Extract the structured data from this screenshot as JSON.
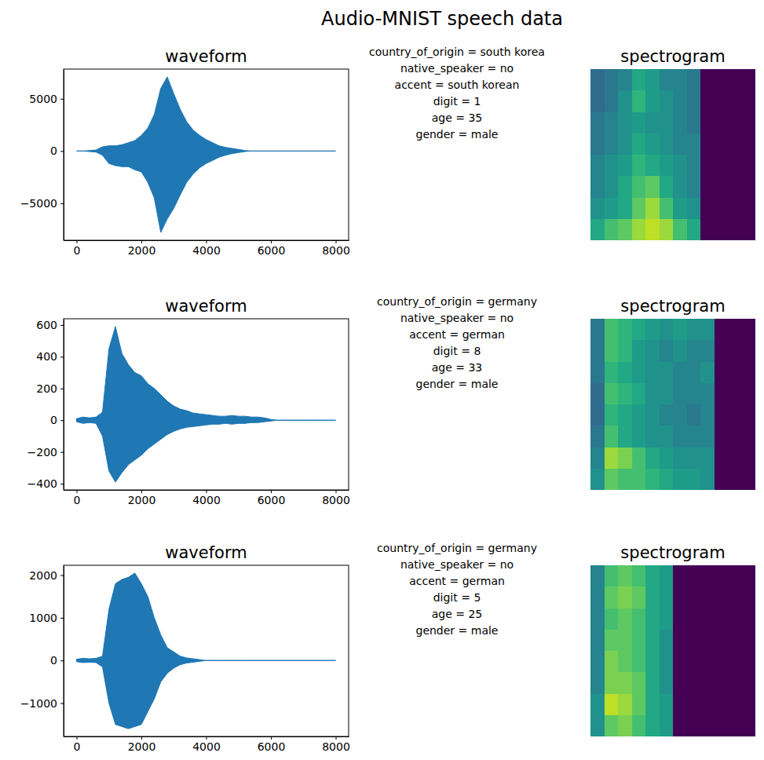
{
  "title": "Audio-MNIST speech data",
  "chart_data": [
    {
      "type": "area",
      "title": "waveform",
      "color": "#1f77b4",
      "x": [
        0,
        200,
        400,
        600,
        800,
        1000,
        1200,
        1400,
        1600,
        1800,
        2000,
        2200,
        2400,
        2600,
        2800,
        3000,
        3200,
        3400,
        3600,
        3800,
        4000,
        4200,
        4400,
        4600,
        4800,
        5000,
        5200,
        5400,
        5600,
        5800,
        6000,
        6200,
        6400,
        6600,
        6800,
        7000,
        7200,
        7400,
        7600,
        7800,
        8000
      ],
      "upper": [
        0,
        0,
        50,
        100,
        400,
        500,
        500,
        600,
        800,
        1000,
        1500,
        2200,
        3500,
        6000,
        7100,
        5500,
        4000,
        2800,
        2000,
        1500,
        1100,
        800,
        500,
        350,
        250,
        150,
        50,
        0,
        0,
        0,
        0,
        0,
        0,
        0,
        0,
        0,
        0,
        0,
        0,
        0,
        0
      ],
      "lower": [
        0,
        0,
        -50,
        -100,
        -400,
        -1200,
        -1400,
        -1500,
        -1500,
        -1800,
        -2000,
        -3000,
        -4500,
        -7800,
        -6500,
        -5500,
        -4200,
        -3000,
        -2200,
        -1600,
        -1200,
        -900,
        -600,
        -400,
        -250,
        -150,
        -50,
        0,
        0,
        0,
        0,
        0,
        0,
        0,
        0,
        0,
        0,
        0,
        0,
        0,
        0
      ],
      "xlim": [
        -400,
        8400
      ],
      "xticks": [
        0,
        2000,
        4000,
        6000,
        8000
      ],
      "ylim": [
        -8545,
        7845
      ],
      "yticks": [
        {
          "value": -5000,
          "label": "−5000"
        },
        0,
        5000
      ],
      "annotations": [
        "country_of_origin = south korea",
        "native_speaker = no",
        "accent = south korean",
        "digit = 1",
        "age = 35",
        "gender = male"
      ]
    },
    {
      "type": "heatmap",
      "title": "spectrogram",
      "tick_labels": false,
      "color_range": [
        0,
        1
      ],
      "cells": [
        [
          0.35,
          0.4,
          0.45,
          0.6,
          0.55,
          0.45,
          0.45,
          0.4,
          0,
          0,
          0,
          0
        ],
        [
          0.35,
          0.4,
          0.5,
          0.65,
          0.55,
          0.5,
          0.45,
          0.4,
          0,
          0,
          0,
          0
        ],
        [
          0.4,
          0.45,
          0.5,
          0.55,
          0.5,
          0.5,
          0.45,
          0.4,
          0,
          0,
          0,
          0
        ],
        [
          0.4,
          0.45,
          0.5,
          0.6,
          0.55,
          0.5,
          0.45,
          0.45,
          0,
          0,
          0,
          0
        ],
        [
          0.45,
          0.5,
          0.55,
          0.65,
          0.6,
          0.55,
          0.5,
          0.45,
          0,
          0,
          0,
          0
        ],
        [
          0.45,
          0.5,
          0.6,
          0.7,
          0.75,
          0.6,
          0.5,
          0.45,
          0,
          0,
          0,
          0
        ],
        [
          0.5,
          0.55,
          0.6,
          0.75,
          0.85,
          0.7,
          0.55,
          0.5,
          0,
          0,
          0,
          0
        ],
        [
          0.6,
          0.7,
          0.75,
          0.85,
          0.9,
          0.85,
          0.7,
          0.6,
          0,
          0,
          0,
          0
        ]
      ]
    },
    {
      "type": "area",
      "title": "waveform",
      "color": "#1f77b4",
      "x": [
        0,
        200,
        400,
        600,
        800,
        1000,
        1200,
        1400,
        1600,
        1800,
        2000,
        2200,
        2400,
        2600,
        2800,
        3000,
        3200,
        3400,
        3600,
        3800,
        4000,
        4200,
        4400,
        4600,
        4800,
        5000,
        5200,
        5400,
        5600,
        5800,
        6000,
        6200,
        6400,
        6600,
        6800,
        7000,
        7200,
        7400,
        7600,
        7800,
        8000
      ],
      "upper": [
        10,
        20,
        15,
        20,
        50,
        450,
        590,
        420,
        350,
        300,
        280,
        230,
        200,
        160,
        120,
        90,
        70,
        60,
        45,
        40,
        35,
        30,
        25,
        25,
        30,
        25,
        25,
        20,
        20,
        15,
        5,
        0,
        0,
        0,
        0,
        0,
        0,
        0,
        0,
        0,
        0
      ],
      "lower": [
        -10,
        -20,
        -15,
        -20,
        -100,
        -320,
        -390,
        -330,
        -280,
        -250,
        -220,
        -180,
        -150,
        -120,
        -90,
        -70,
        -55,
        -45,
        -40,
        -35,
        -30,
        -25,
        -25,
        -20,
        -25,
        -20,
        -20,
        -15,
        -15,
        -10,
        -5,
        0,
        0,
        0,
        0,
        0,
        0,
        0,
        0,
        0,
        0
      ],
      "xlim": [
        -400,
        8400
      ],
      "xticks": [
        0,
        2000,
        4000,
        6000,
        8000
      ],
      "ylim": [
        -439,
        639
      ],
      "yticks": [
        {
          "value": -400,
          "label": "−400"
        },
        {
          "value": -200,
          "label": "−200"
        },
        0,
        200,
        400,
        600
      ],
      "annotations": [
        "country_of_origin = germany",
        "native_speaker = no",
        "accent = german",
        "digit = 8",
        "age = 33",
        "gender = male"
      ]
    },
    {
      "type": "heatmap",
      "title": "spectrogram",
      "tick_labels": false,
      "color_range": [
        0,
        1
      ],
      "cells": [
        [
          0.4,
          0.7,
          0.65,
          0.6,
          0.55,
          0.5,
          0.55,
          0.5,
          0.5,
          0,
          0,
          0
        ],
        [
          0.4,
          0.7,
          0.65,
          0.55,
          0.5,
          0.45,
          0.5,
          0.45,
          0.45,
          0,
          0,
          0
        ],
        [
          0.4,
          0.65,
          0.6,
          0.55,
          0.5,
          0.5,
          0.45,
          0.45,
          0.5,
          0,
          0,
          0
        ],
        [
          0.35,
          0.7,
          0.65,
          0.6,
          0.5,
          0.5,
          0.45,
          0.45,
          0.45,
          0,
          0,
          0
        ],
        [
          0.35,
          0.65,
          0.6,
          0.55,
          0.5,
          0.45,
          0.45,
          0.4,
          0.45,
          0,
          0,
          0
        ],
        [
          0.4,
          0.7,
          0.6,
          0.55,
          0.5,
          0.5,
          0.45,
          0.45,
          0.45,
          0,
          0,
          0
        ],
        [
          0.45,
          0.85,
          0.8,
          0.7,
          0.6,
          0.55,
          0.5,
          0.5,
          0.5,
          0,
          0,
          0
        ],
        [
          0.5,
          0.75,
          0.7,
          0.7,
          0.65,
          0.6,
          0.55,
          0.55,
          0.5,
          0,
          0,
          0
        ]
      ]
    },
    {
      "type": "area",
      "title": "waveform",
      "color": "#1f77b4",
      "x": [
        0,
        200,
        400,
        600,
        800,
        1000,
        1200,
        1400,
        1600,
        1800,
        2000,
        2200,
        2400,
        2600,
        2800,
        3000,
        3200,
        3400,
        3600,
        3800,
        4000,
        4200,
        4400,
        4600,
        4800,
        5000,
        5200,
        5400,
        5600,
        5800,
        6000,
        6200,
        6400,
        6600,
        6800,
        7000,
        7200,
        7400,
        7600,
        7800,
        8000
      ],
      "upper": [
        30,
        50,
        40,
        50,
        100,
        1200,
        1800,
        1900,
        1950,
        2050,
        1800,
        1500,
        1000,
        600,
        300,
        200,
        100,
        60,
        40,
        20,
        0,
        0,
        0,
        0,
        0,
        0,
        0,
        0,
        0,
        0,
        0,
        0,
        0,
        0,
        0,
        0,
        0,
        0,
        0,
        0,
        0
      ],
      "lower": [
        -30,
        -50,
        -40,
        -50,
        -150,
        -1000,
        -1500,
        -1550,
        -1600,
        -1550,
        -1500,
        -1200,
        -900,
        -500,
        -300,
        -180,
        -100,
        -60,
        -40,
        -20,
        0,
        0,
        0,
        0,
        0,
        0,
        0,
        0,
        0,
        0,
        0,
        0,
        0,
        0,
        0,
        0,
        0,
        0,
        0,
        0,
        0
      ],
      "xlim": [
        -400,
        8400
      ],
      "xticks": [
        0,
        2000,
        4000,
        6000,
        8000
      ],
      "ylim": [
        -1782,
        2232
      ],
      "yticks": [
        {
          "value": -1000,
          "label": "−1000"
        },
        0,
        1000,
        2000
      ],
      "annotations": [
        "country_of_origin = germany",
        "native_speaker = no",
        "accent = german",
        "digit = 5",
        "age = 25",
        "gender = male"
      ]
    },
    {
      "type": "heatmap",
      "title": "spectrogram",
      "tick_labels": false,
      "color_range": [
        0,
        1
      ],
      "cells": [
        [
          0.45,
          0.7,
          0.75,
          0.7,
          0.6,
          0.55,
          0,
          0,
          0,
          0,
          0,
          0
        ],
        [
          0.45,
          0.75,
          0.8,
          0.75,
          0.6,
          0.55,
          0,
          0,
          0,
          0,
          0,
          0
        ],
        [
          0.45,
          0.7,
          0.75,
          0.7,
          0.6,
          0.55,
          0,
          0,
          0,
          0,
          0,
          0
        ],
        [
          0.45,
          0.75,
          0.75,
          0.7,
          0.6,
          0.5,
          0,
          0,
          0,
          0,
          0,
          0
        ],
        [
          0.45,
          0.8,
          0.75,
          0.7,
          0.6,
          0.5,
          0,
          0,
          0,
          0,
          0,
          0
        ],
        [
          0.45,
          0.8,
          0.8,
          0.75,
          0.6,
          0.5,
          0,
          0,
          0,
          0,
          0,
          0
        ],
        [
          0.5,
          0.9,
          0.85,
          0.75,
          0.6,
          0.55,
          0,
          0,
          0,
          0,
          0,
          0
        ],
        [
          0.5,
          0.75,
          0.8,
          0.7,
          0.6,
          0.55,
          0,
          0,
          0,
          0,
          0,
          0
        ]
      ]
    }
  ]
}
